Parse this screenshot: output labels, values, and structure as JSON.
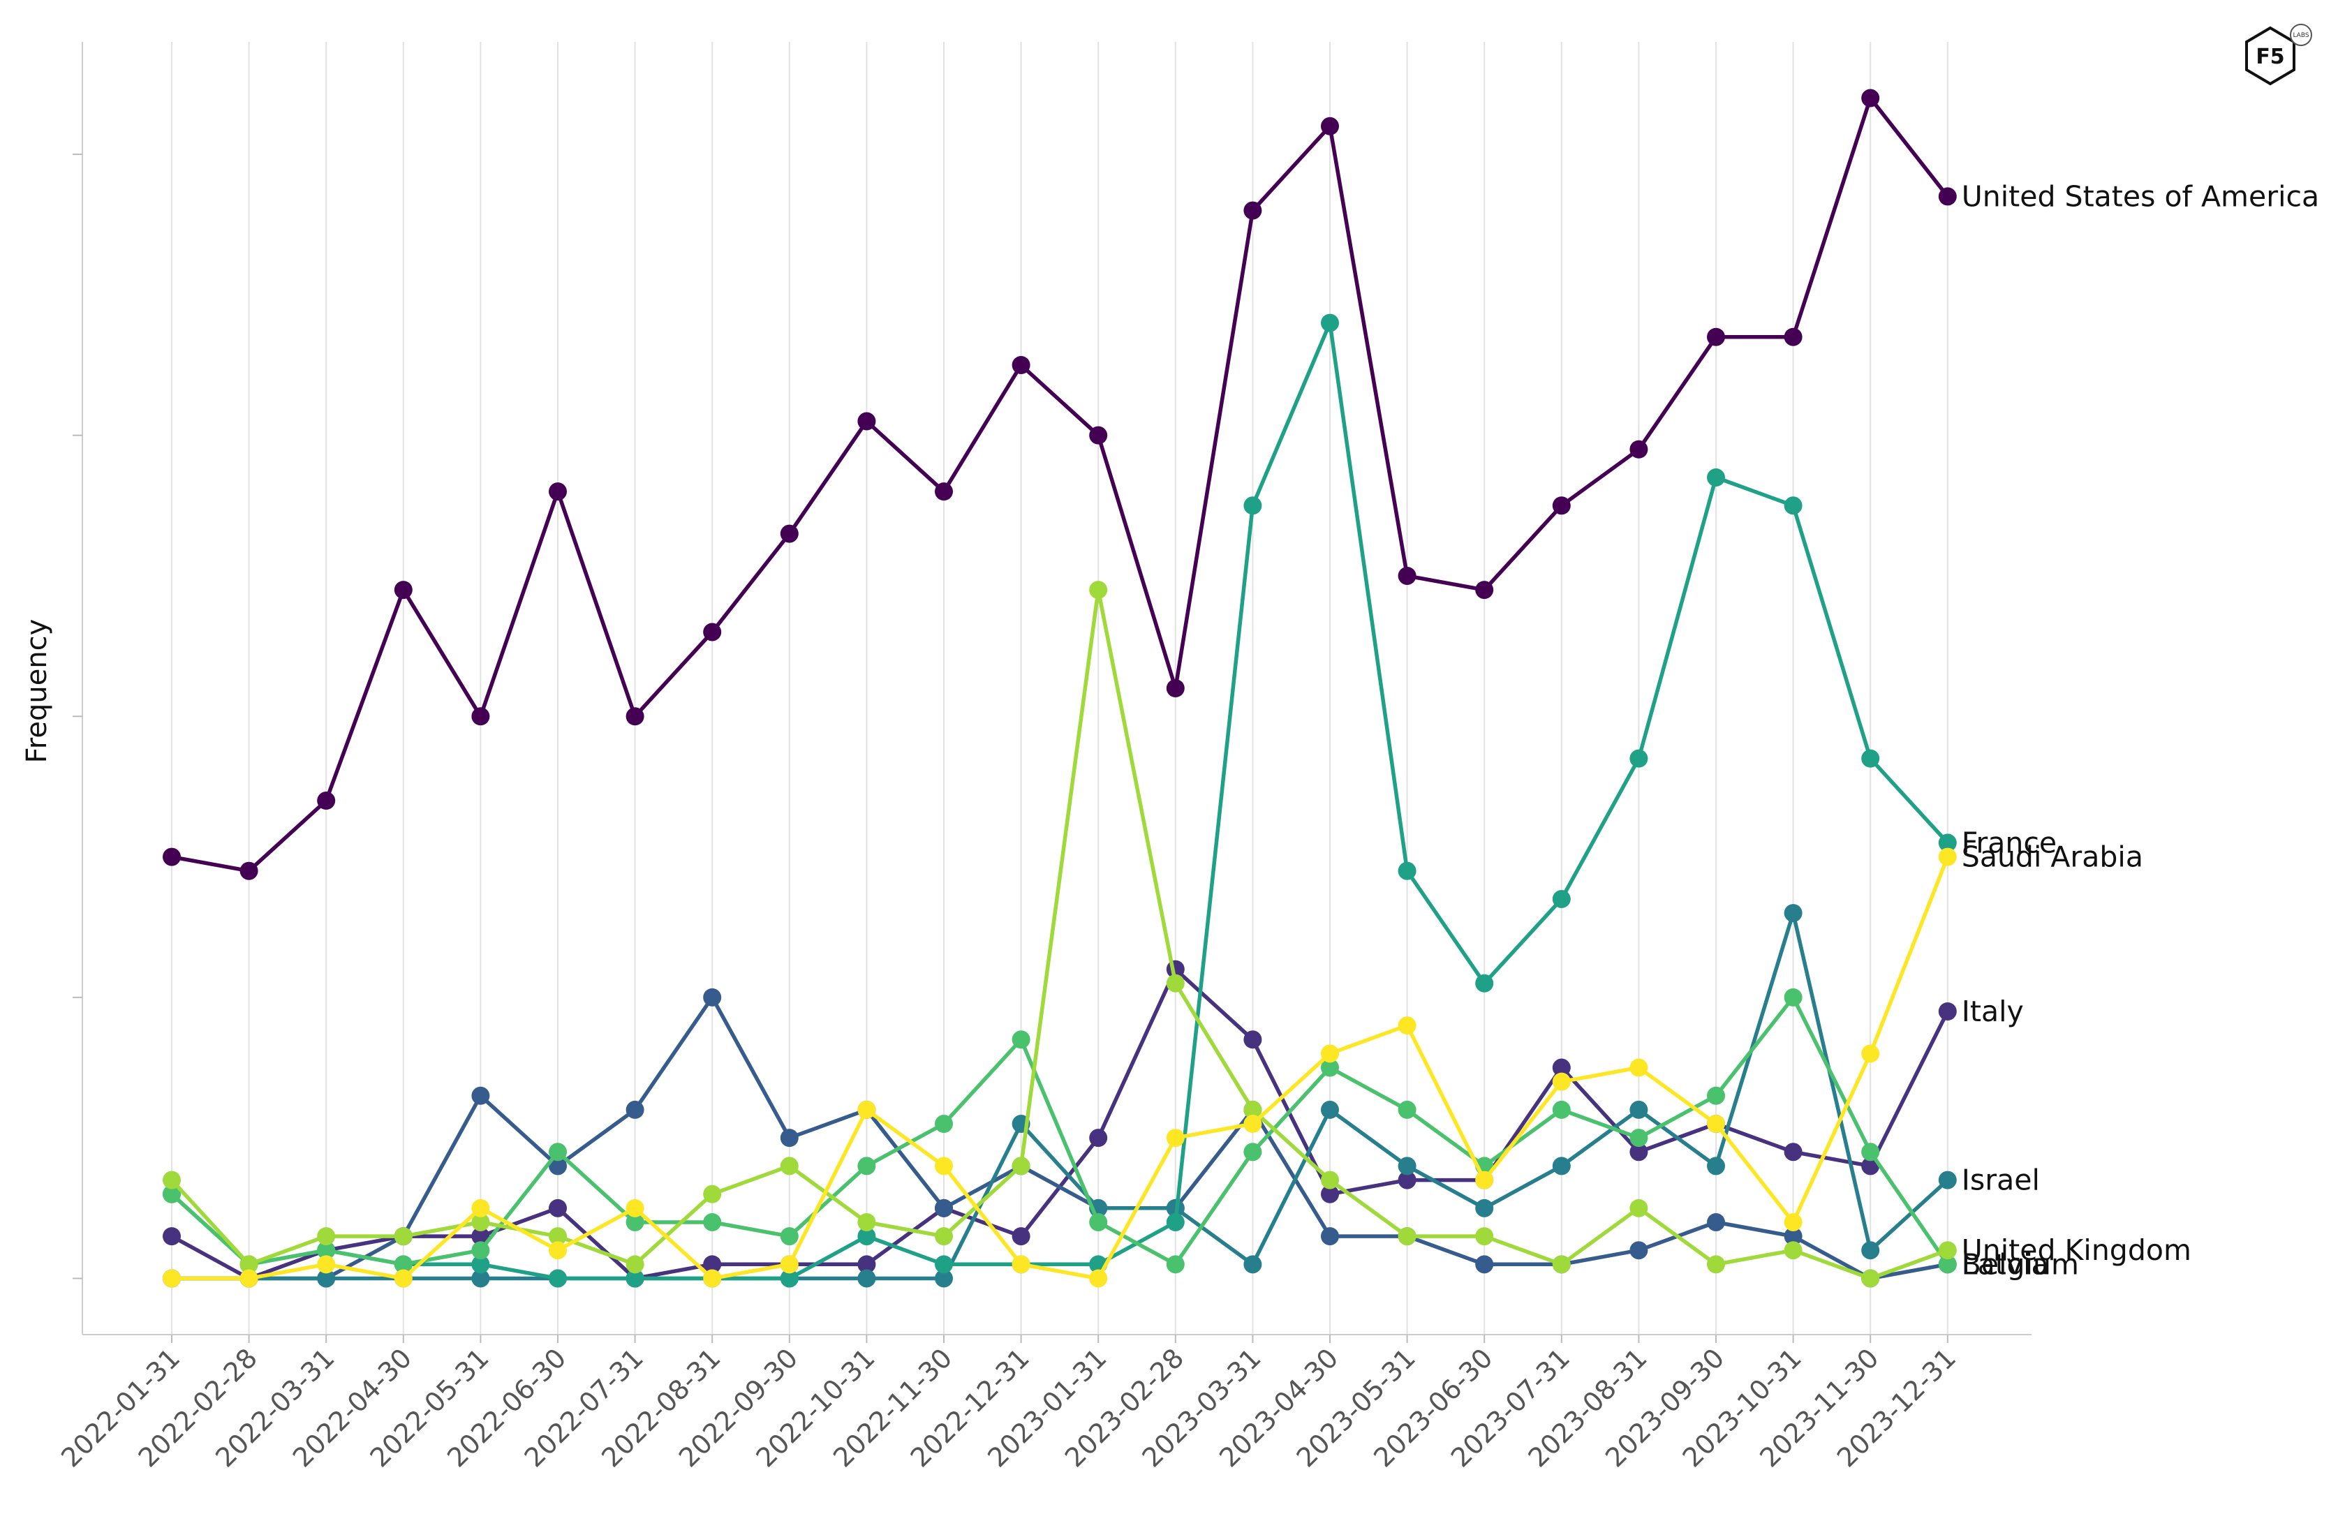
{
  "chart_data": {
    "type": "line",
    "title": "",
    "xlabel": "",
    "ylabel": "Frequency",
    "show_y_tick_labels": false,
    "ylim": [
      -4,
      88
    ],
    "y_ticks": [
      0,
      20,
      40,
      60,
      80
    ],
    "grid": "vertical",
    "legend": "direct labels at line ends (right)",
    "x": [
      "2022-01-31",
      "2022-02-28",
      "2022-03-31",
      "2022-04-30",
      "2022-05-31",
      "2022-06-30",
      "2022-07-31",
      "2022-08-31",
      "2022-09-30",
      "2022-10-31",
      "2022-11-30",
      "2022-12-31",
      "2023-01-31",
      "2023-02-28",
      "2023-03-31",
      "2023-04-30",
      "2023-05-31",
      "2023-06-30",
      "2023-07-31",
      "2023-08-31",
      "2023-09-30",
      "2023-10-31",
      "2023-11-30",
      "2023-12-31"
    ],
    "series": [
      {
        "name": "United States of America",
        "color": "#440154",
        "values": [
          30,
          29,
          34,
          49,
          40,
          56,
          40,
          46,
          53,
          61,
          56,
          65,
          60,
          42,
          76,
          82,
          50,
          49,
          55,
          59,
          67,
          67,
          84,
          77
        ]
      },
      {
        "name": "Italy",
        "color": "#46327e",
        "values": [
          3,
          0,
          2,
          3,
          3,
          5,
          0,
          1,
          1,
          1,
          5,
          3,
          10,
          22,
          17,
          6,
          7,
          7,
          15,
          9,
          11,
          9,
          8,
          19
        ]
      },
      {
        "name": "Latvia",
        "color": "#365c8d",
        "values": [
          0,
          0,
          0,
          3,
          13,
          8,
          12,
          20,
          10,
          12,
          5,
          8,
          5,
          5,
          12,
          3,
          3,
          1,
          1,
          2,
          4,
          3,
          0,
          1
        ]
      },
      {
        "name": "Israel",
        "color": "#277f8e",
        "values": [
          0,
          0,
          0,
          0,
          0,
          0,
          0,
          0,
          0,
          0,
          0,
          11,
          5,
          5,
          1,
          12,
          8,
          5,
          8,
          12,
          8,
          26,
          2,
          7
        ]
      },
      {
        "name": "France",
        "color": "#1fa187",
        "values": [
          6,
          1,
          2,
          1,
          1,
          0,
          0,
          0,
          0,
          3,
          1,
          1,
          1,
          4,
          55,
          68,
          29,
          21,
          27,
          37,
          57,
          55,
          37,
          31
        ]
      },
      {
        "name": "Belgium",
        "color": "#4ac16d",
        "values": [
          6,
          1,
          2,
          1,
          2,
          9,
          4,
          4,
          3,
          8,
          11,
          17,
          4,
          1,
          9,
          15,
          12,
          8,
          12,
          10,
          13,
          20,
          9,
          1
        ]
      },
      {
        "name": "United Kingdom",
        "color": "#9fda3a",
        "values": [
          7,
          1,
          3,
          3,
          4,
          3,
          1,
          6,
          8,
          4,
          3,
          8,
          49,
          21,
          12,
          7,
          3,
          3,
          1,
          5,
          1,
          2,
          0,
          2
        ]
      },
      {
        "name": "Saudi Arabia",
        "color": "#fde725",
        "values": [
          0,
          0,
          1,
          0,
          5,
          2,
          5,
          0,
          1,
          12,
          8,
          1,
          0,
          10,
          11,
          16,
          18,
          7,
          14,
          15,
          11,
          4,
          16,
          30
        ]
      }
    ]
  },
  "logo": {
    "text": "F5",
    "small": "LABS",
    "color": "#111111"
  }
}
